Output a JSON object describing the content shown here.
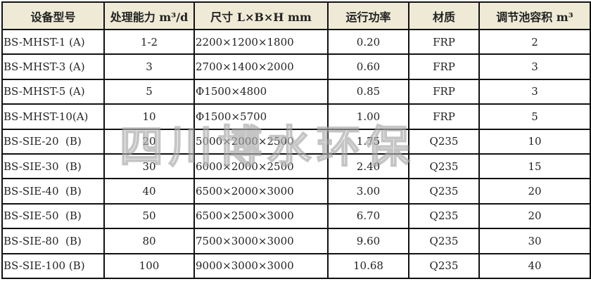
{
  "table": {
    "headers": [
      "设备型号",
      "处理能力 m³/d",
      "尺寸 L×B×H mm",
      "运行功率",
      "材质",
      "调节池容积 m³"
    ],
    "rows": [
      [
        "BS-MHST-1 (A)",
        "1-2",
        "2200×1200×1800",
        "0.20",
        "FRP",
        "2"
      ],
      [
        "BS-MHST-3 (A)",
        "3",
        "2700×1400×2000",
        "0.60",
        "FRP",
        "3"
      ],
      [
        "BS-MHST-5 (A)",
        "5",
        "Φ1500×4800",
        "0.85",
        "FRP",
        "3"
      ],
      [
        "BS-MHST-10(A)",
        "10",
        "Φ1500×5700",
        "1.00",
        "FRP",
        "5"
      ],
      [
        "BS-SIE-20  (B)",
        "20",
        "5000×2000×2500",
        "1.75",
        "Q235",
        "10"
      ],
      [
        "BS-SIE-30  (B)",
        "30",
        "6000×2000×2500",
        "2.40",
        "Q235",
        "15"
      ],
      [
        "BS-SIE-40  (B)",
        "40",
        "6500×2000×3000",
        "3.00",
        "Q235",
        "20"
      ],
      [
        "BS-SIE-50  (B)",
        "50",
        "6500×2500×3000",
        "6.70",
        "Q235",
        "20"
      ],
      [
        "BS-SIE-80  (B)",
        "80",
        "7500×3000×3000",
        "9.60",
        "Q235",
        "30"
      ],
      [
        "BS-SIE-100 (B)",
        "100",
        "9000×3000×3000",
        "10.68",
        "Q235",
        "40"
      ]
    ]
  },
  "watermark": "四川博水环保",
  "colors": {
    "header_bg": "#eeead6",
    "border": "#111111"
  }
}
